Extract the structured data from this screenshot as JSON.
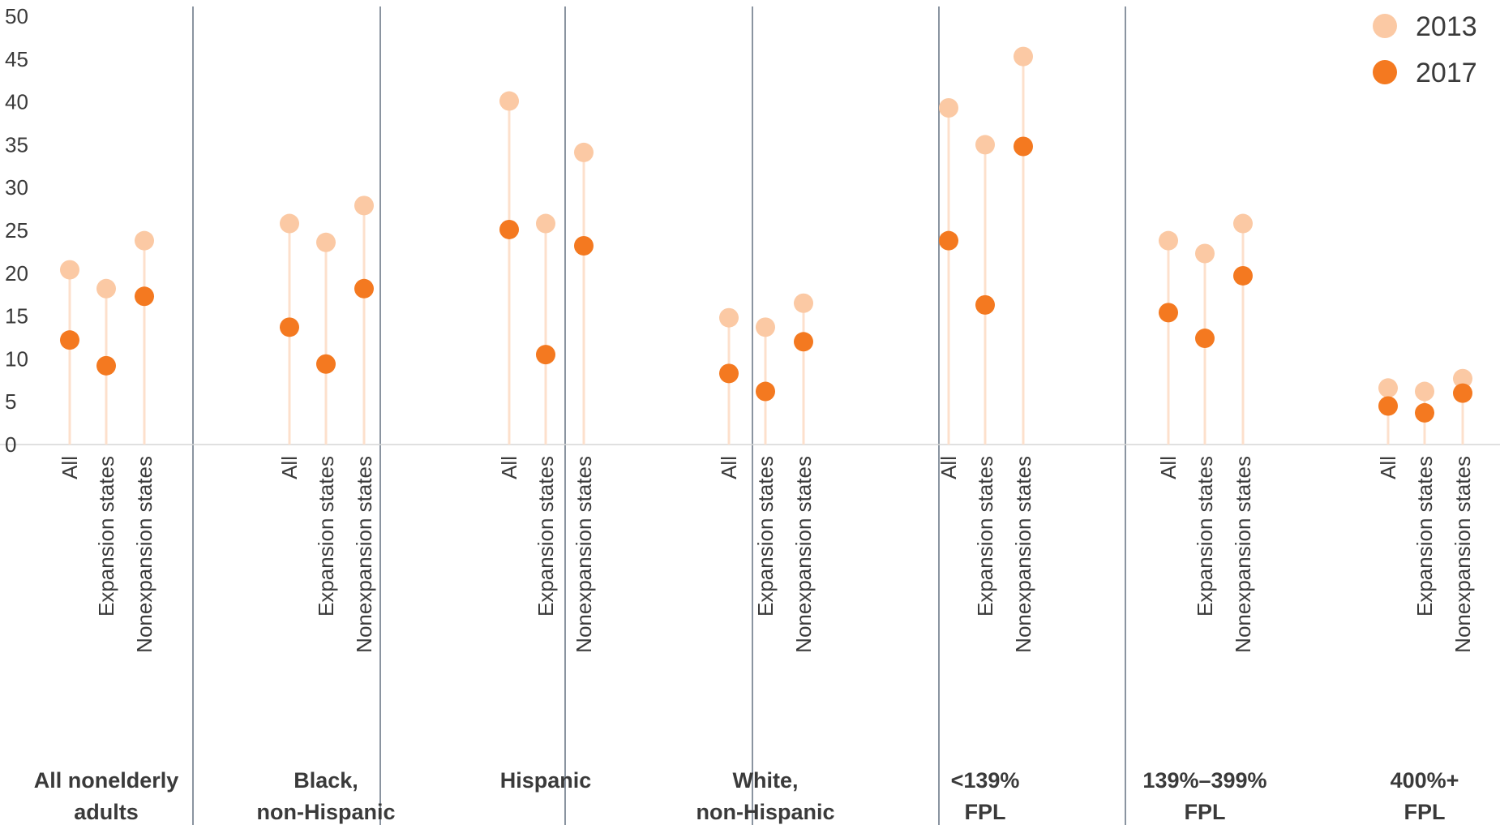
{
  "chart_data": {
    "type": "scatter",
    "title": "",
    "xlabel": "",
    "ylabel": "",
    "ylim": [
      0,
      50
    ],
    "yticks": [
      0,
      5,
      10,
      15,
      20,
      25,
      30,
      35,
      40,
      45,
      50
    ],
    "grid": false,
    "legend_position": "top-right",
    "colors": {
      "2013": "#fbc9a4",
      "2017": "#f47920",
      "stem": "#fde0cc",
      "separator": "#8a94a0",
      "baseline": "#d6d6d6"
    },
    "series": [
      {
        "name": "2013"
      },
      {
        "name": "2017"
      }
    ],
    "subcategories": [
      "All",
      "Expansion states",
      "Nonexpansion states"
    ],
    "groups": [
      {
        "label_lines": [
          "All nonelderly",
          "adults"
        ],
        "values_2013": [
          20.4,
          18.2,
          23.8
        ],
        "values_2017": [
          12.2,
          9.2,
          17.3
        ]
      },
      {
        "label_lines": [
          "Black,",
          "non-Hispanic"
        ],
        "values_2013": [
          25.8,
          23.6,
          27.9
        ],
        "values_2017": [
          13.7,
          9.4,
          18.2
        ]
      },
      {
        "label_lines": [
          "Hispanic"
        ],
        "values_2013": [
          40.1,
          25.8,
          34.1
        ],
        "values_2017": [
          25.1,
          10.5,
          23.2
        ]
      },
      {
        "label_lines": [
          "White,",
          "non-Hispanic"
        ],
        "values_2013": [
          14.8,
          13.7,
          16.5
        ],
        "values_2017": [
          8.3,
          6.2,
          12.0
        ]
      },
      {
        "label_lines": [
          "<139%",
          "FPL"
        ],
        "values_2013": [
          39.3,
          35.0,
          45.3
        ],
        "values_2017": [
          23.8,
          16.3,
          34.8
        ]
      },
      {
        "label_lines": [
          "139%–399%",
          "FPL"
        ],
        "values_2013": [
          23.8,
          22.3,
          25.8
        ],
        "values_2017": [
          15.4,
          12.4,
          19.7
        ]
      },
      {
        "label_lines": [
          "400%+",
          "FPL"
        ],
        "values_2013": [
          6.6,
          6.2,
          7.7
        ],
        "values_2017": [
          4.5,
          3.7,
          6.0
        ]
      }
    ]
  }
}
